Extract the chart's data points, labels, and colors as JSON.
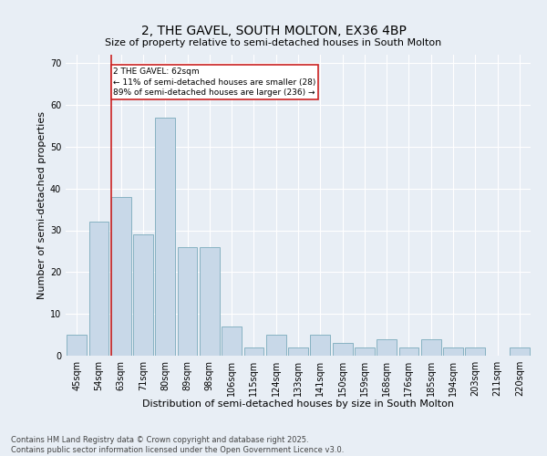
{
  "title": "2, THE GAVEL, SOUTH MOLTON, EX36 4BP",
  "subtitle": "Size of property relative to semi-detached houses in South Molton",
  "xlabel": "Distribution of semi-detached houses by size in South Molton",
  "ylabel": "Number of semi-detached properties",
  "footnote": "Contains HM Land Registry data © Crown copyright and database right 2025.\nContains public sector information licensed under the Open Government Licence v3.0.",
  "categories": [
    "45sqm",
    "54sqm",
    "63sqm",
    "71sqm",
    "80sqm",
    "89sqm",
    "98sqm",
    "106sqm",
    "115sqm",
    "124sqm",
    "133sqm",
    "141sqm",
    "150sqm",
    "159sqm",
    "168sqm",
    "176sqm",
    "185sqm",
    "194sqm",
    "203sqm",
    "211sqm",
    "220sqm"
  ],
  "values": [
    5,
    32,
    38,
    29,
    57,
    26,
    26,
    7,
    2,
    5,
    2,
    5,
    3,
    2,
    4,
    2,
    4,
    2,
    2,
    0,
    2
  ],
  "bar_color": "#c8d8e8",
  "bar_edge_color": "#7aaabb",
  "vline_x_index": 2,
  "vline_color": "#cc2222",
  "annotation_text": "2 THE GAVEL: 62sqm\n← 11% of semi-detached houses are smaller (28)\n89% of semi-detached houses are larger (236) →",
  "ylim": [
    0,
    72
  ],
  "yticks": [
    0,
    10,
    20,
    30,
    40,
    50,
    60,
    70
  ],
  "bg_color": "#e8eef5",
  "grid_color": "#ffffff",
  "title_fontsize": 10,
  "label_fontsize": 8,
  "tick_fontsize": 7,
  "footnote_fontsize": 6
}
